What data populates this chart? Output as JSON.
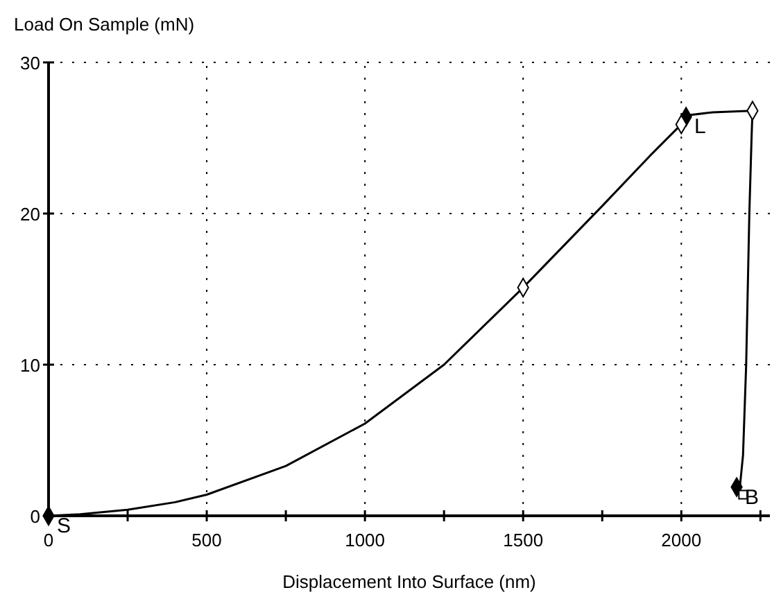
{
  "chart_data": {
    "type": "line",
    "xlabel": "Displacement Into Surface (nm)",
    "ylabel": "Load On Sample (mN)",
    "xlim": [
      0,
      2280
    ],
    "ylim": [
      0,
      30
    ],
    "xticks": [
      0,
      {
        "value": 250,
        "label": null
      },
      500,
      {
        "value": 750,
        "label": null
      },
      1000,
      {
        "value": 1250,
        "label": null
      },
      1500,
      {
        "value": 1750,
        "label": null
      },
      2000,
      {
        "value": 2250,
        "label": null
      }
    ],
    "yticks": [
      0,
      10,
      20,
      30
    ],
    "grid": true,
    "series": [
      {
        "color": "#000000",
        "marker": "none",
        "x": [
          0,
          100,
          250,
          400,
          500,
          750,
          1000,
          1250,
          1500,
          1750,
          1900,
          2000,
          2020,
          2100,
          2225,
          2222,
          2215,
          2205,
          2195,
          2185
        ],
        "values": [
          0,
          0.1,
          0.4,
          0.9,
          1.4,
          3.3,
          6.1,
          10,
          15.1,
          20.5,
          23.8,
          25.9,
          26.5,
          26.7,
          26.8,
          25,
          20,
          10,
          4,
          1.9
        ]
      },
      {
        "type": "scatter",
        "color": "#000000",
        "marker": "diamond",
        "x": [
          0,
          2015,
          2175
        ],
        "values": [
          0,
          26.4,
          1.9
        ]
      },
      {
        "type": "scatter",
        "color": "#ffffff",
        "marker": "diamond",
        "x": [
          1500,
          2000,
          2225
        ],
        "values": [
          15.1,
          25.9,
          26.8
        ]
      },
      {
        "type": "scatter",
        "color": "#ffffff",
        "marker": "square",
        "x": [
          2195
        ],
        "values": [
          1.4
        ]
      }
    ],
    "annotations": [
      {
        "text": "S",
        "x": 0,
        "y": 0
      },
      {
        "text": "L",
        "x": 2015,
        "y": 26.4
      },
      {
        "text": "B",
        "x": 2175,
        "y": 1.9
      }
    ]
  }
}
